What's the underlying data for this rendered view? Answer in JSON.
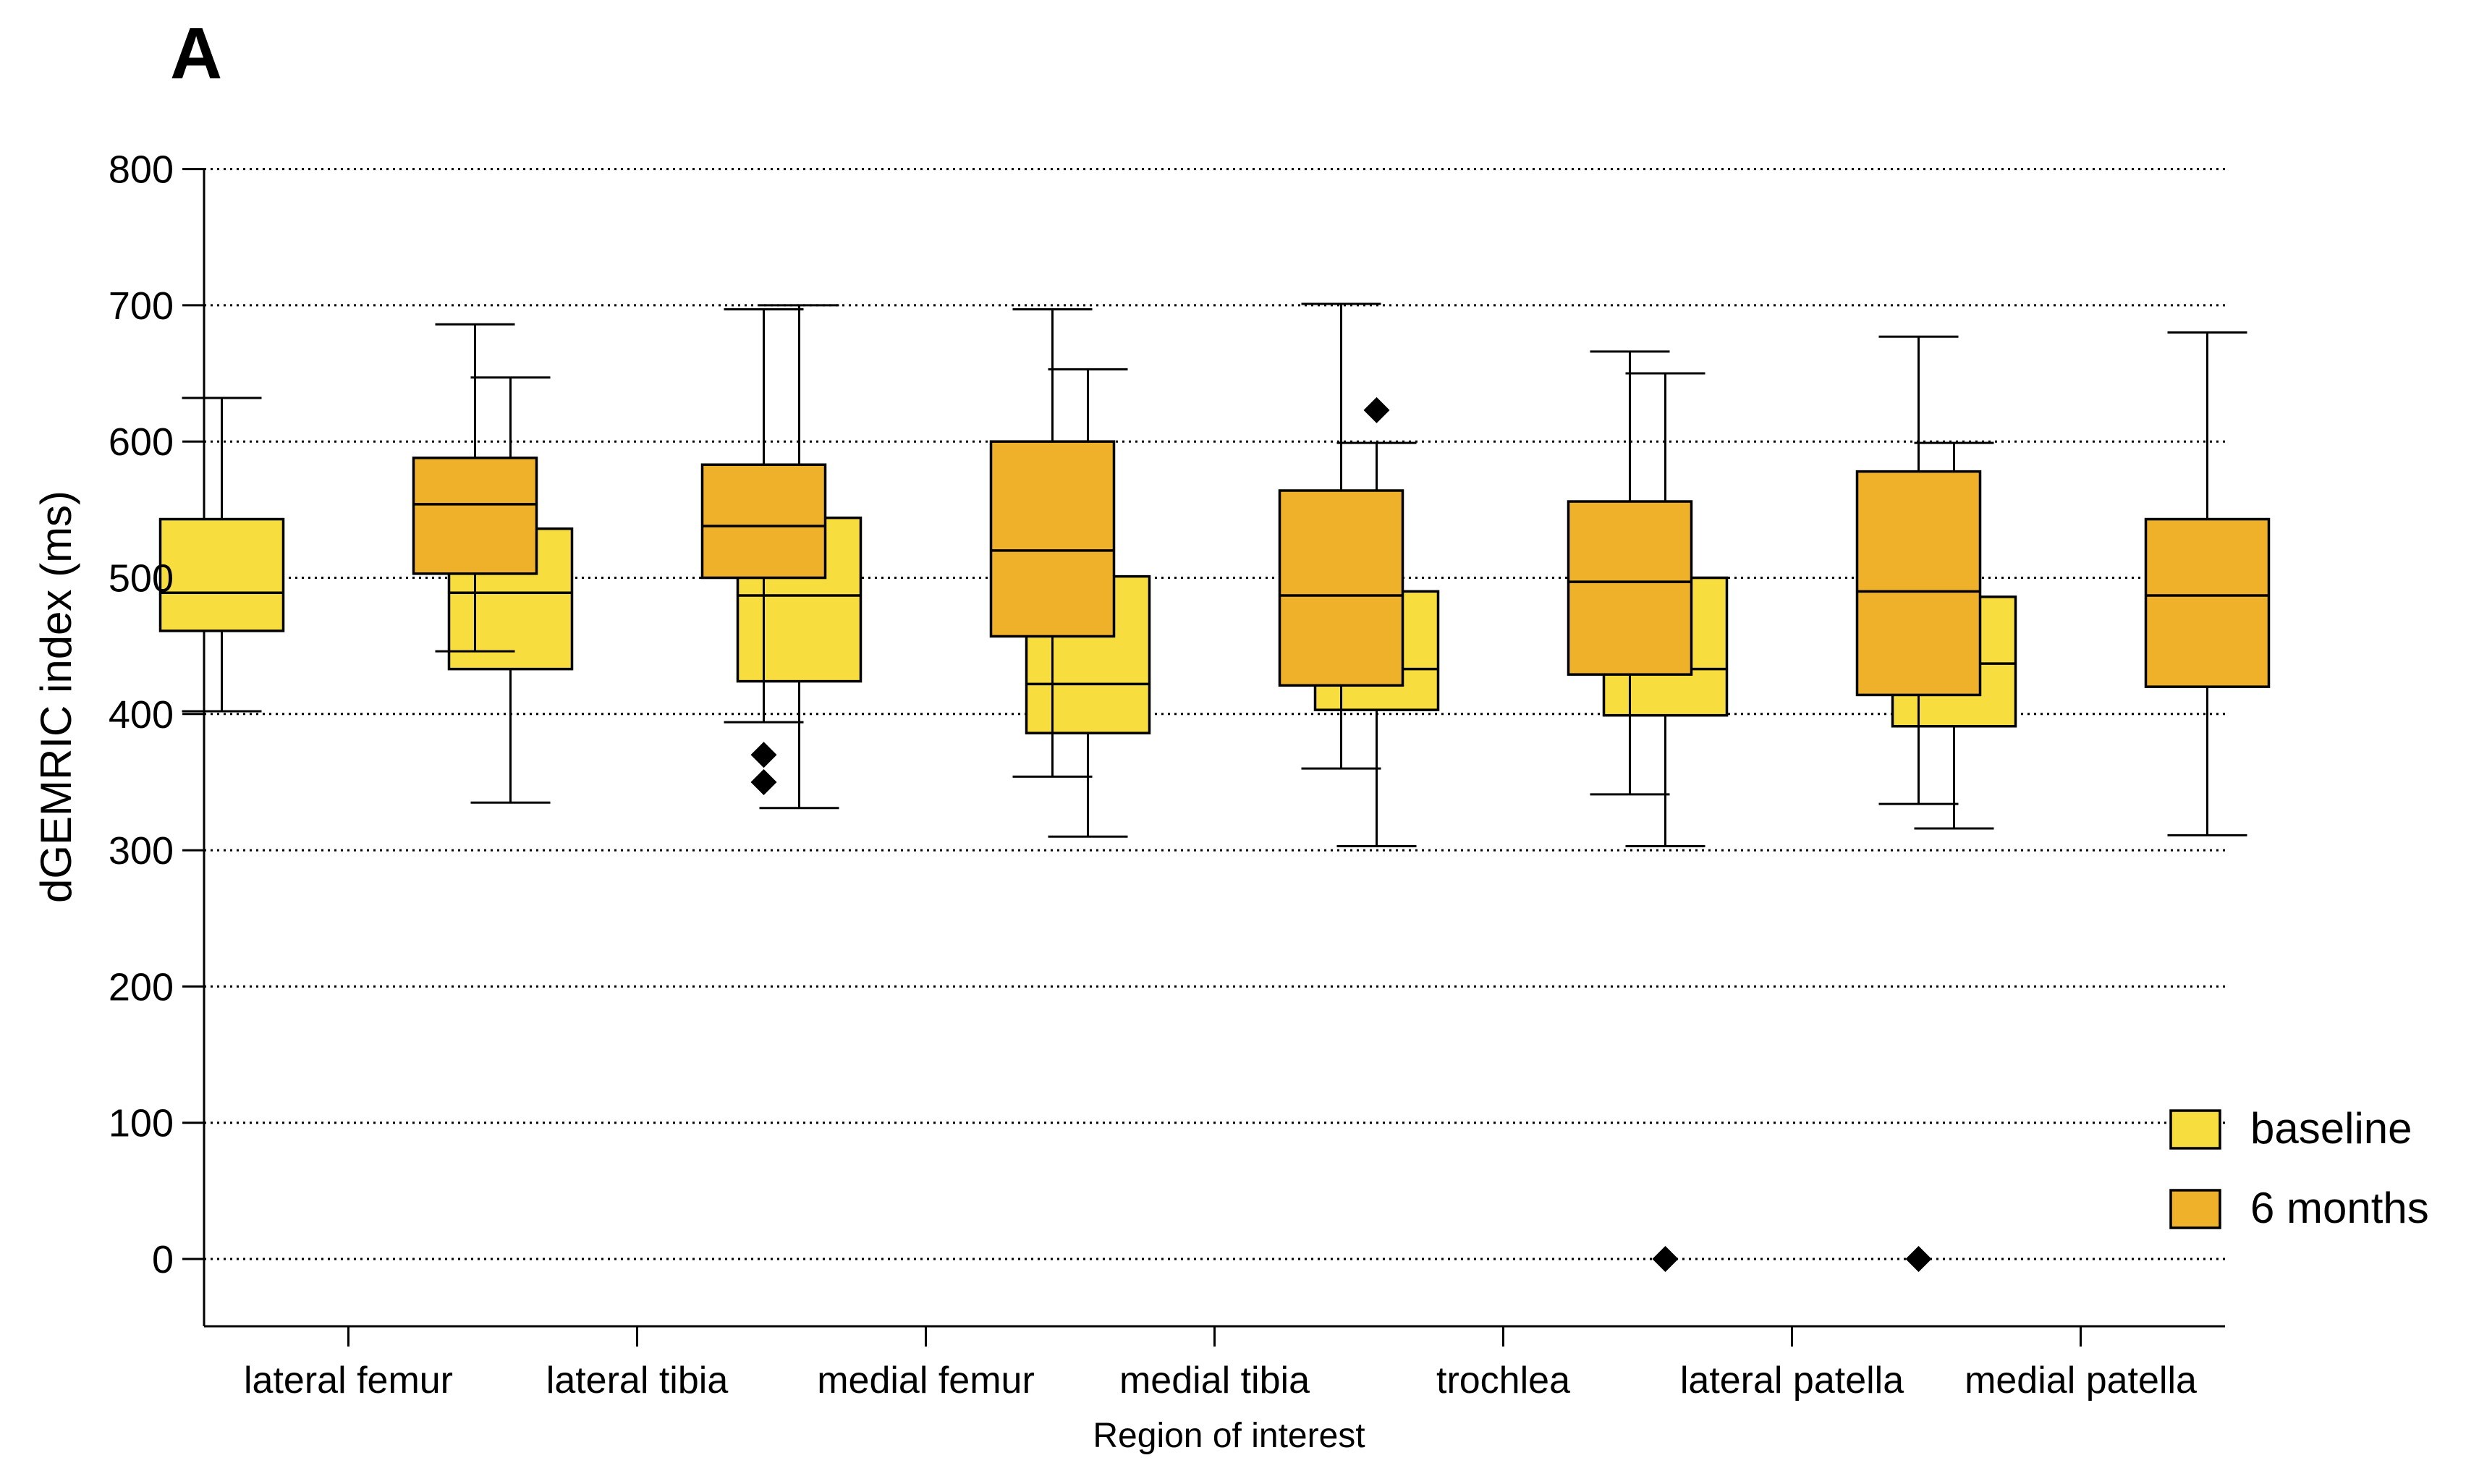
{
  "panel_label": "A",
  "chart_data": {
    "type": "box",
    "title": "",
    "xlabel": "Region of interest",
    "ylabel": "dGEMRIC index (ms)",
    "ylim": [
      -50,
      800
    ],
    "yticks": [
      0,
      100,
      200,
      300,
      400,
      500,
      600,
      700,
      800
    ],
    "grid": true,
    "legend_position": "bottom-right",
    "categories": [
      "lateral femur",
      "lateral tibia",
      "medial femur",
      "medial tibia",
      "trochlea",
      "lateral patella",
      "medial patella"
    ],
    "series": [
      {
        "name": "baseline",
        "color": "#f7dd3e",
        "boxes": [
          {
            "min": 402,
            "q1": 461,
            "median": 489,
            "q3": 543,
            "max": 632,
            "outliers": []
          },
          {
            "min": 335,
            "q1": 433,
            "median": 489,
            "q3": 536,
            "max": 647,
            "outliers": []
          },
          {
            "min": 331,
            "q1": 424,
            "median": 487,
            "q3": 544,
            "max": 700,
            "outliers": []
          },
          {
            "min": 310,
            "q1": 386,
            "median": 422,
            "q3": 501,
            "max": 653,
            "outliers": []
          },
          {
            "min": 303,
            "q1": 403,
            "median": 433,
            "q3": 490,
            "max": 599,
            "outliers": [
              623
            ]
          },
          {
            "min": 303,
            "q1": 399,
            "median": 433,
            "q3": 500,
            "max": 650,
            "outliers": [
              0
            ]
          },
          {
            "min": 316,
            "q1": 391,
            "median": 437,
            "q3": 486,
            "max": 599,
            "outliers": []
          }
        ]
      },
      {
        "name": "6 months",
        "color": "#efb02a",
        "boxes": [
          {
            "min": 446,
            "q1": 503,
            "median": 554,
            "q3": 588,
            "max": 686,
            "outliers": []
          },
          {
            "min": 394,
            "q1": 500,
            "median": 538,
            "q3": 583,
            "max": 697,
            "outliers": [
              370,
              350
            ]
          },
          {
            "min": 354,
            "q1": 457,
            "median": 520,
            "q3": 600,
            "max": 697,
            "outliers": []
          },
          {
            "min": 360,
            "q1": 421,
            "median": 487,
            "q3": 564,
            "max": 701,
            "outliers": []
          },
          {
            "min": 341,
            "q1": 429,
            "median": 497,
            "q3": 556,
            "max": 666,
            "outliers": []
          },
          {
            "min": 334,
            "q1": 414,
            "median": 490,
            "q3": 578,
            "max": 677,
            "outliers": [
              0
            ]
          },
          {
            "min": 311,
            "q1": 420,
            "median": 487,
            "q3": 543,
            "max": 680,
            "outliers": []
          }
        ]
      }
    ]
  }
}
